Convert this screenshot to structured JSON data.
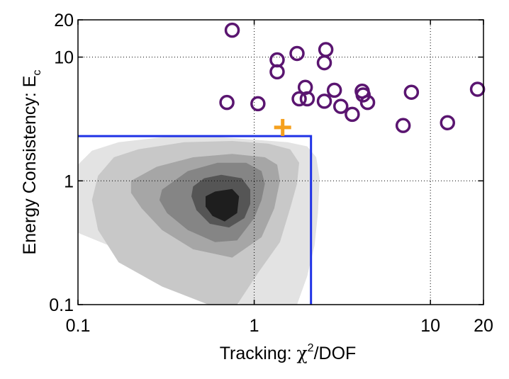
{
  "chart_data": {
    "type": "scatter",
    "title": "",
    "x_scale": "log",
    "y_scale": "log",
    "xlim": [
      0.1,
      20
    ],
    "ylim": [
      0.1,
      20
    ],
    "grid": true,
    "grid_style": "dotted",
    "xlabel": {
      "prefix": "Tracking:  ",
      "symbol": "χ",
      "superscript": "2",
      "suffix": "/DOF"
    },
    "ylabel": {
      "prefix": "Energy Consistency: E",
      "subscript": "c"
    },
    "x_ticks": [
      {
        "value": 0.1,
        "label": "0.1"
      },
      {
        "value": 1,
        "label": "1"
      },
      {
        "value": 10,
        "label": "10"
      },
      {
        "value": 20,
        "label": "20"
      }
    ],
    "y_ticks": [
      {
        "value": 0.1,
        "label": "0.1"
      },
      {
        "value": 1,
        "label": "1"
      },
      {
        "value": 10,
        "label": "10"
      },
      {
        "value": 20,
        "label": "20"
      }
    ],
    "series": [
      {
        "marker": "circle",
        "color": "#5a1570",
        "points": [
          {
            "x": 0.75,
            "y": 16.5
          },
          {
            "x": 0.7,
            "y": 4.3
          },
          {
            "x": 1.05,
            "y": 4.2
          },
          {
            "x": 1.35,
            "y": 9.5
          },
          {
            "x": 1.35,
            "y": 7.6
          },
          {
            "x": 1.75,
            "y": 10.7
          },
          {
            "x": 1.95,
            "y": 5.7
          },
          {
            "x": 1.8,
            "y": 4.6
          },
          {
            "x": 2.0,
            "y": 4.6
          },
          {
            "x": 2.55,
            "y": 11.5
          },
          {
            "x": 2.5,
            "y": 9.0
          },
          {
            "x": 2.5,
            "y": 4.4
          },
          {
            "x": 2.85,
            "y": 5.4
          },
          {
            "x": 3.1,
            "y": 4.0
          },
          {
            "x": 3.6,
            "y": 3.45
          },
          {
            "x": 4.1,
            "y": 5.3
          },
          {
            "x": 4.15,
            "y": 4.95
          },
          {
            "x": 4.4,
            "y": 4.3
          },
          {
            "x": 7.0,
            "y": 2.8
          },
          {
            "x": 7.8,
            "y": 5.2
          },
          {
            "x": 12.5,
            "y": 2.95
          },
          {
            "x": 18.5,
            "y": 5.5
          }
        ]
      },
      {
        "marker": "plus",
        "color": "#f5a01e",
        "points": [
          {
            "x": 1.45,
            "y": 2.7
          }
        ]
      }
    ],
    "cut_region": {
      "color": "#1f32e6",
      "x_max": 2.1,
      "y_max": 2.3
    },
    "contour_levels": [
      {
        "fill": "#e3e3e3",
        "points": [
          [
            0.1,
            1.35
          ],
          [
            0.12,
            1.75
          ],
          [
            0.17,
            2.05
          ],
          [
            0.3,
            2.25
          ],
          [
            0.55,
            2.3
          ],
          [
            1.0,
            2.15
          ],
          [
            1.55,
            2.05
          ],
          [
            2.0,
            1.9
          ],
          [
            2.25,
            1.55
          ],
          [
            2.35,
            1.05
          ],
          [
            2.3,
            0.55
          ],
          [
            2.2,
            0.3
          ],
          [
            2.0,
            0.17
          ],
          [
            1.75,
            0.1
          ],
          [
            0.85,
            0.1
          ],
          [
            0.3,
            0.18
          ],
          [
            0.15,
            0.3
          ],
          [
            0.1,
            0.38
          ]
        ]
      },
      {
        "fill": "#c8c8c8",
        "points": [
          [
            0.13,
            1.1
          ],
          [
            0.16,
            1.55
          ],
          [
            0.22,
            1.8
          ],
          [
            0.4,
            2.05
          ],
          [
            0.75,
            2.1
          ],
          [
            1.2,
            2.0
          ],
          [
            1.6,
            1.8
          ],
          [
            1.8,
            1.4
          ],
          [
            1.75,
            0.95
          ],
          [
            1.6,
            0.6
          ],
          [
            1.4,
            0.32
          ],
          [
            1.05,
            0.18
          ],
          [
            0.8,
            0.1
          ],
          [
            0.55,
            0.1
          ],
          [
            0.3,
            0.14
          ],
          [
            0.17,
            0.22
          ],
          [
            0.13,
            0.4
          ],
          [
            0.12,
            0.7
          ]
        ]
      },
      {
        "fill": "#a6a6a6",
        "points": [
          [
            0.2,
            1.0
          ],
          [
            0.28,
            1.3
          ],
          [
            0.45,
            1.55
          ],
          [
            0.75,
            1.65
          ],
          [
            1.15,
            1.55
          ],
          [
            1.35,
            1.35
          ],
          [
            1.4,
            1.0
          ],
          [
            1.3,
            0.6
          ],
          [
            1.1,
            0.35
          ],
          [
            0.75,
            0.24
          ],
          [
            0.45,
            0.28
          ],
          [
            0.3,
            0.4
          ],
          [
            0.23,
            0.6
          ],
          [
            0.2,
            0.8
          ]
        ]
      },
      {
        "fill": "#858585",
        "points": [
          [
            0.3,
            0.85
          ],
          [
            0.42,
            1.2
          ],
          [
            0.62,
            1.4
          ],
          [
            0.9,
            1.4
          ],
          [
            1.1,
            1.2
          ],
          [
            1.15,
            0.95
          ],
          [
            1.1,
            0.7
          ],
          [
            1.0,
            0.5
          ],
          [
            0.8,
            0.33
          ],
          [
            0.6,
            0.32
          ],
          [
            0.42,
            0.4
          ],
          [
            0.32,
            0.55
          ],
          [
            0.29,
            0.7
          ]
        ]
      },
      {
        "fill": "#555555",
        "points": [
          [
            0.45,
            0.9
          ],
          [
            0.52,
            1.05
          ],
          [
            0.65,
            1.12
          ],
          [
            0.85,
            1.05
          ],
          [
            0.95,
            0.85
          ],
          [
            0.95,
            0.65
          ],
          [
            0.88,
            0.5
          ],
          [
            0.72,
            0.42
          ],
          [
            0.56,
            0.45
          ],
          [
            0.47,
            0.58
          ],
          [
            0.44,
            0.75
          ]
        ]
      },
      {
        "fill": "#1e1e1e",
        "points": [
          [
            0.53,
            0.75
          ],
          [
            0.6,
            0.82
          ],
          [
            0.75,
            0.86
          ],
          [
            0.82,
            0.75
          ],
          [
            0.8,
            0.55
          ],
          [
            0.68,
            0.47
          ],
          [
            0.58,
            0.52
          ],
          [
            0.53,
            0.62
          ]
        ]
      }
    ]
  }
}
